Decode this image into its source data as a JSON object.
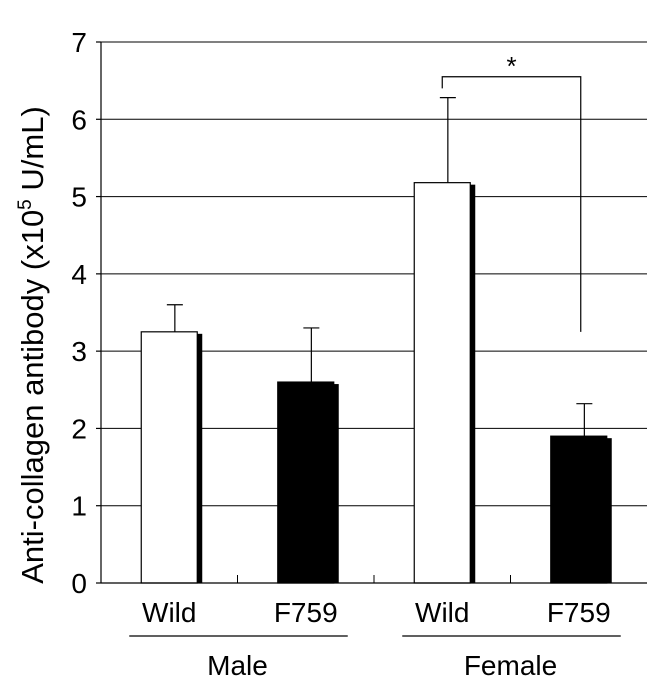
{
  "chart_data": {
    "type": "bar",
    "ylabel": "Anti-collagen antibody (x10",
    "ylabel_sup": "5",
    "ylabel_unit": " U/mL)",
    "ylim": [
      0,
      7
    ],
    "yticks": [
      "0",
      "1",
      "2",
      "3",
      "4",
      "5",
      "6",
      "7"
    ],
    "grid": true,
    "groups": [
      {
        "label": "Male",
        "categories": [
          "Wild",
          "F759"
        ]
      },
      {
        "label": "Female",
        "categories": [
          "Wild",
          "F759"
        ]
      }
    ],
    "bars": [
      {
        "group": "Male",
        "category": "Wild",
        "value": 3.25,
        "error": 0.35,
        "fill": "#ffffff"
      },
      {
        "group": "Male",
        "category": "F759",
        "value": 2.6,
        "error": 0.7,
        "fill": "#000000"
      },
      {
        "group": "Female",
        "category": "Wild",
        "value": 5.18,
        "error": 1.1,
        "fill": "#ffffff"
      },
      {
        "group": "Female",
        "category": "F759",
        "value": 1.9,
        "error": 0.42,
        "fill": "#000000"
      }
    ],
    "annotations": [
      {
        "text": "*",
        "between": [
          "Female Wild",
          "Female F759"
        ]
      }
    ]
  }
}
